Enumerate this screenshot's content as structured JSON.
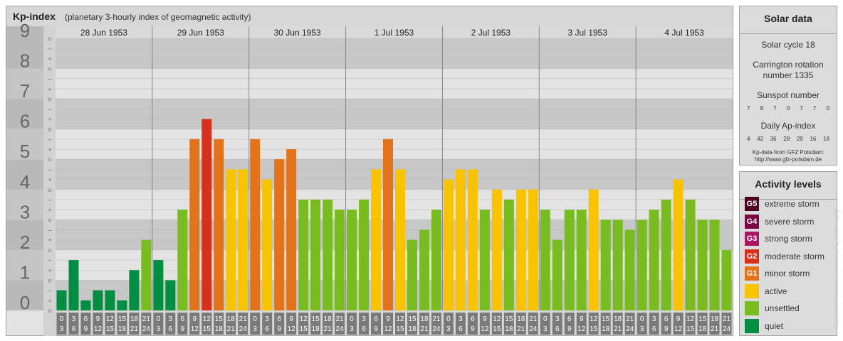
{
  "header": {
    "title": "Kp-index",
    "subtitle": "(planetary 3-hourly index of geomagnetic activity)"
  },
  "chart_data": {
    "type": "bar",
    "y_ticks": [
      "0",
      "1",
      "2",
      "3",
      "4",
      "5",
      "6",
      "7",
      "8",
      "9"
    ],
    "sub_ticks": [
      "o",
      "+",
      "–"
    ],
    "days": [
      "28 Jun 1953",
      "29 Jun 1953",
      "30 Jun 1953",
      "1 Jul 1953",
      "2 Jul 1953",
      "3 Jul 1953",
      "4 Jul 1953"
    ],
    "x_label_top": [
      "0",
      "3",
      "6",
      "9",
      "12",
      "15",
      "18",
      "21"
    ],
    "x_label_bottom": [
      "3",
      "6",
      "9",
      "12",
      "15",
      "18",
      "21",
      "24"
    ],
    "ylim": [
      0,
      9
    ],
    "values": [
      0.667,
      1.667,
      0.333,
      0.667,
      0.667,
      0.333,
      1.333,
      2.333,
      1.667,
      1.0,
      3.333,
      5.667,
      6.333,
      5.667,
      4.667,
      4.667,
      5.667,
      4.333,
      5.0,
      5.333,
      3.667,
      3.667,
      3.667,
      3.333,
      3.333,
      3.667,
      4.667,
      5.667,
      4.667,
      2.333,
      2.667,
      3.333,
      4.333,
      4.667,
      4.667,
      3.333,
      4.0,
      3.667,
      4.0,
      4.0,
      3.333,
      2.333,
      3.333,
      3.333,
      4.0,
      3.0,
      3.0,
      2.667,
      3.0,
      3.333,
      3.667,
      4.333,
      3.667,
      3.0,
      3.0,
      2.0
    ],
    "colors": {
      "quiet": "#008e42",
      "unsettled": "#78bc1f",
      "active": "#f9c300",
      "minor": "#e2731b",
      "moderate": "#d7311e",
      "strong": "#aa1662",
      "severe": "#7a0542",
      "extreme": "#4d0424"
    },
    "band_colors": {
      "dark": "#c7c7c7",
      "light": "#e3e3e3",
      "ylabel": "#b9b9b9",
      "xlabel": "#7a7a7a"
    }
  },
  "solar": {
    "title": "Solar data",
    "cycle": "Solar cycle 18",
    "carrington_line1": "Carrington rotation",
    "carrington_line2": "number 1335",
    "sunspot_title": "Sunspot number",
    "sunspot_values": [
      "7",
      "8",
      "7",
      "0",
      "7",
      "7",
      "0"
    ],
    "ap_title": "Daily Ap-index",
    "ap_values": [
      "4",
      "42",
      "36",
      "28",
      "29",
      "16",
      "18"
    ],
    "source_line1": "Kp-data from GFZ Potsdam:",
    "source_line2": "http://www.gfz-potsdam.de"
  },
  "activity": {
    "title": "Activity levels",
    "levels": [
      {
        "code": "G5",
        "label": "extreme storm",
        "color": "#4d0424"
      },
      {
        "code": "G4",
        "label": "severe storm",
        "color": "#7a0542"
      },
      {
        "code": "G3",
        "label": "strong storm",
        "color": "#aa1662"
      },
      {
        "code": "G2",
        "label": "moderate storm",
        "color": "#d7311e"
      },
      {
        "code": "G1",
        "label": "minor storm",
        "color": "#e2731b"
      },
      {
        "code": "",
        "label": "active",
        "color": "#f9c300"
      },
      {
        "code": "",
        "label": "unsettled",
        "color": "#78bc1f"
      },
      {
        "code": "",
        "label": "quiet",
        "color": "#008e42"
      }
    ]
  },
  "watermark": "http://www.theusenet.de/auroral/kp_archive.php"
}
